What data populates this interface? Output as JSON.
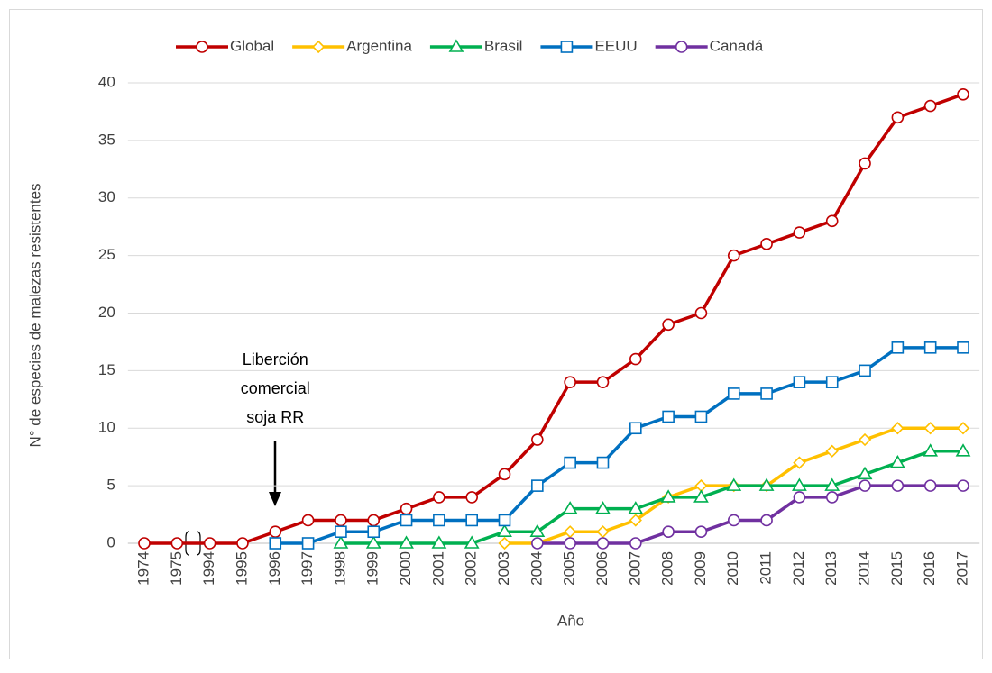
{
  "chart_data": {
    "type": "line",
    "categories": [
      "1974",
      "1975",
      "1994",
      "1995",
      "1996",
      "1997",
      "1998",
      "1999",
      "2000",
      "2001",
      "2002",
      "2003",
      "2004",
      "2005",
      "2006",
      "2007",
      "2008",
      "2009",
      "2010",
      "2011",
      "2012",
      "2013",
      "2014",
      "2015",
      "2016",
      "2017"
    ],
    "series": [
      {
        "name": "Global",
        "color": "#c00000",
        "marker": "circle",
        "values": [
          0,
          0,
          0,
          0,
          1,
          2,
          2,
          2,
          3,
          4,
          4,
          6,
          9,
          14,
          14,
          16,
          19,
          20,
          25,
          26,
          27,
          28,
          33,
          37,
          38,
          39
        ]
      },
      {
        "name": "Argentina",
        "color": "#ffc000",
        "marker": "diamond",
        "values": [
          null,
          null,
          null,
          null,
          null,
          null,
          null,
          null,
          null,
          null,
          null,
          0,
          0,
          1,
          1,
          2,
          4,
          5,
          5,
          5,
          7,
          8,
          9,
          10,
          10,
          10
        ]
      },
      {
        "name": "Brasil",
        "color": "#00b050",
        "marker": "triangle",
        "values": [
          null,
          null,
          null,
          null,
          null,
          null,
          0,
          0,
          0,
          0,
          0,
          1,
          1,
          3,
          3,
          3,
          4,
          4,
          5,
          5,
          5,
          5,
          6,
          7,
          8,
          8
        ]
      },
      {
        "name": "EEUU",
        "color": "#0070c0",
        "marker": "square",
        "values": [
          null,
          null,
          null,
          null,
          0,
          0,
          1,
          1,
          2,
          2,
          2,
          2,
          5,
          7,
          7,
          10,
          11,
          11,
          13,
          13,
          14,
          14,
          15,
          17,
          17,
          17
        ]
      },
      {
        "name": "Canadá",
        "color": "#7030a0",
        "marker": "circle",
        "values": [
          null,
          null,
          null,
          null,
          null,
          null,
          null,
          null,
          null,
          null,
          null,
          null,
          0,
          0,
          0,
          0,
          1,
          1,
          2,
          2,
          4,
          4,
          5,
          5,
          5,
          5
        ]
      }
    ],
    "ylim": [
      0,
      40
    ],
    "yticks": [
      0,
      5,
      10,
      15,
      20,
      25,
      30,
      35,
      40
    ],
    "grid": true,
    "legend": "top",
    "xlabel": "Año",
    "ylabel": "N° de especies de malezas resistentes",
    "annotation": {
      "lines": [
        "Liberción",
        "comercial",
        "soja RR"
      ],
      "category": "1996"
    }
  }
}
